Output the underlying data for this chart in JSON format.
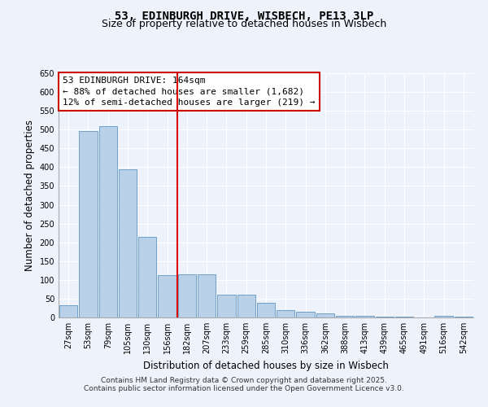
{
  "title": "53, EDINBURGH DRIVE, WISBECH, PE13 3LP",
  "subtitle": "Size of property relative to detached houses in Wisbech",
  "xlabel": "Distribution of detached houses by size in Wisbech",
  "ylabel": "Number of detached properties",
  "bar_labels": [
    "27sqm",
    "53sqm",
    "79sqm",
    "105sqm",
    "130sqm",
    "156sqm",
    "182sqm",
    "207sqm",
    "233sqm",
    "259sqm",
    "285sqm",
    "310sqm",
    "336sqm",
    "362sqm",
    "388sqm",
    "413sqm",
    "439sqm",
    "465sqm",
    "491sqm",
    "516sqm",
    "542sqm"
  ],
  "bar_values": [
    33,
    497,
    510,
    395,
    215,
    112,
    115,
    115,
    60,
    60,
    40,
    20,
    15,
    10,
    5,
    5,
    2,
    2,
    1,
    5,
    2
  ],
  "bar_color": "#b8d0e8",
  "bar_edge_color": "#6fa0c8",
  "vline_x": 5.5,
  "vline_color": "#dd0000",
  "annotation_text": "53 EDINBURGH DRIVE: 164sqm\n← 88% of detached houses are smaller (1,682)\n12% of semi-detached houses are larger (219) →",
  "annotation_box_color": "#ffffff",
  "annotation_box_edge": "#cc0000",
  "ylim": [
    0,
    650
  ],
  "yticks": [
    0,
    50,
    100,
    150,
    200,
    250,
    300,
    350,
    400,
    450,
    500,
    550,
    600,
    650
  ],
  "bg_color": "#eef2fb",
  "grid_color": "#ffffff",
  "footer_line1": "Contains HM Land Registry data © Crown copyright and database right 2025.",
  "footer_line2": "Contains public sector information licensed under the Open Government Licence v3.0.",
  "title_fontsize": 10,
  "subtitle_fontsize": 9,
  "axis_label_fontsize": 8.5,
  "tick_fontsize": 7,
  "annotation_fontsize": 8,
  "footer_fontsize": 6.5
}
